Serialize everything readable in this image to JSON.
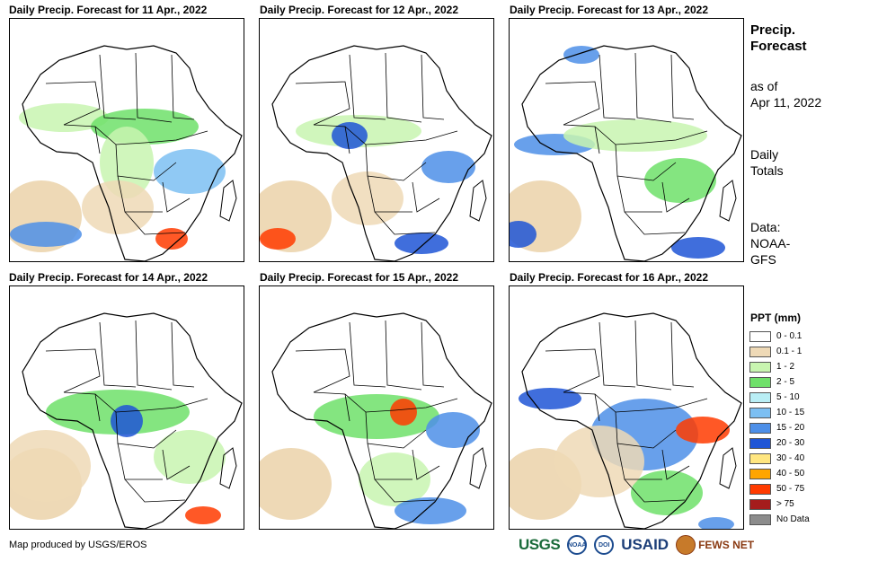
{
  "panels": [
    {
      "title": "Daily Precip. Forecast for 11 Apr., 2022"
    },
    {
      "title": "Daily Precip. Forecast for 12 Apr., 2022"
    },
    {
      "title": "Daily Precip. Forecast for 13 Apr., 2022"
    },
    {
      "title": "Daily Precip. Forecast for 14 Apr., 2022"
    },
    {
      "title": "Daily Precip. Forecast for 15 Apr., 2022"
    },
    {
      "title": "Daily Precip. Forecast for 16 Apr., 2022"
    }
  ],
  "side": {
    "title_line1": "Precip.",
    "title_line2": "Forecast",
    "asof_line1": "as of",
    "asof_line2": "Apr 11, 2022",
    "daily_line1": "Daily",
    "daily_line2": "Totals",
    "data_line1": "Data:",
    "data_line2": "NOAA-",
    "data_line3": "GFS"
  },
  "legend": {
    "title": "PPT (mm)",
    "items": [
      {
        "label": "0 - 0.1",
        "color": "#ffffff"
      },
      {
        "label": "0.1 - 1",
        "color": "#eed9b6"
      },
      {
        "label": "1 - 2",
        "color": "#c8f5b0"
      },
      {
        "label": "2 - 5",
        "color": "#6fe06a"
      },
      {
        "label": "5 - 10",
        "color": "#b9eef5"
      },
      {
        "label": "10 - 15",
        "color": "#7cbff2"
      },
      {
        "label": "15 - 20",
        "color": "#4d8fe8"
      },
      {
        "label": "20 - 30",
        "color": "#1f55d6"
      },
      {
        "label": "30 - 40",
        "color": "#ffe680"
      },
      {
        "label": "40 - 50",
        "color": "#ffa500"
      },
      {
        "label": "50 - 75",
        "color": "#ff3b00"
      },
      {
        "label": "> 75",
        "color": "#a51c1c"
      },
      {
        "label": "No Data",
        "color": "#8c8c8c"
      }
    ]
  },
  "footer": {
    "credit": "Map produced by USGS/EROS",
    "logo_usgs": "USGS",
    "logo_noaa": "NOAA",
    "logo_doi": "DOI",
    "logo_usaid": "USAID",
    "logo_fews": "FEWS NET"
  }
}
